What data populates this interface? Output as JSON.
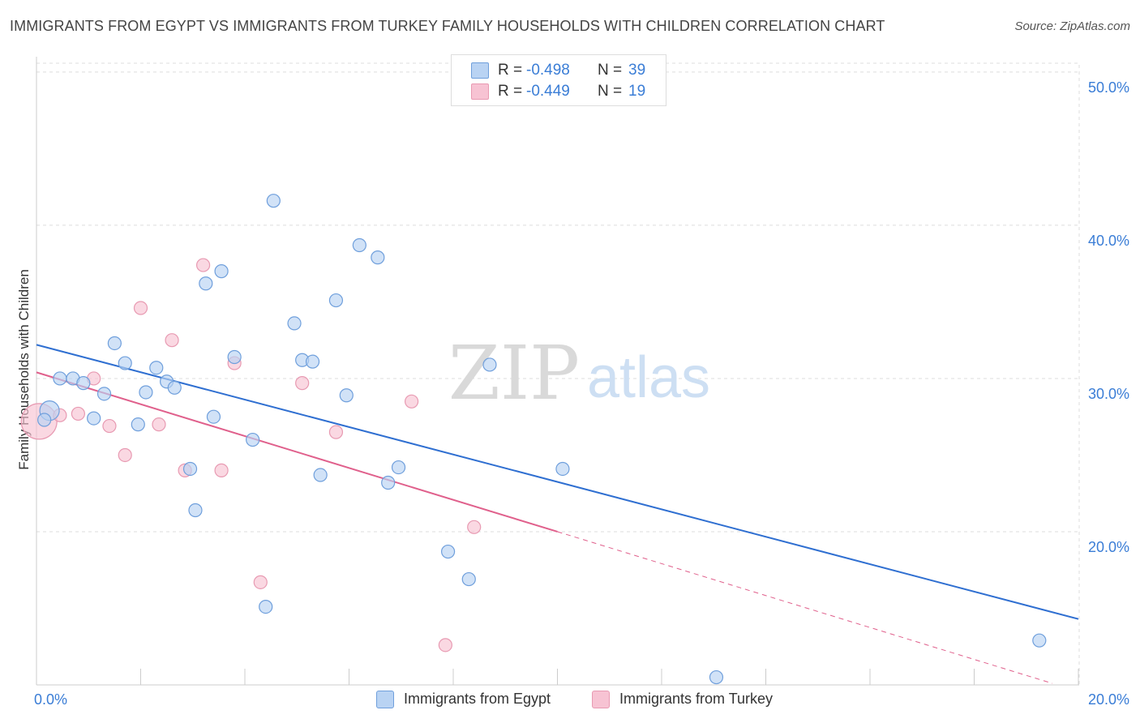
{
  "header": {
    "title": "IMMIGRANTS FROM EGYPT VS IMMIGRANTS FROM TURKEY FAMILY HOUSEHOLDS WITH CHILDREN CORRELATION CHART",
    "source": "Source: ZipAtlas.com"
  },
  "watermark": {
    "zip": "ZIP",
    "atlas": "atlas"
  },
  "stats": {
    "egypt": {
      "r_label": "R =",
      "r_value": "-0.498",
      "n_label": "N =",
      "n_value": "39"
    },
    "turkey": {
      "r_label": "R =",
      "r_value": "-0.449",
      "n_label": "N =",
      "n_value": "19"
    }
  },
  "legend": {
    "egypt": "Immigrants from Egypt",
    "turkey": "Immigrants from Turkey"
  },
  "colors": {
    "egypt_fill": "#b9d3f3",
    "egypt_stroke": "#6f9fdc",
    "egypt_line": "#2f6fd1",
    "turkey_fill": "#f7c3d3",
    "turkey_stroke": "#e89ab2",
    "turkey_line": "#e0608c",
    "axis_text": "#3a7dd6",
    "grid": "#dddddd"
  },
  "chart_data": {
    "type": "scatter",
    "title": "IMMIGRANTS FROM EGYPT VS IMMIGRANTS FROM TURKEY FAMILY HOUSEHOLDS WITH CHILDREN CORRELATION CHART",
    "xlabel": "",
    "ylabel": "Family Households with Children",
    "xlim": [
      0,
      20
    ],
    "ylim": [
      10,
      51
    ],
    "x_tick_labels": [
      "0.0%",
      "20.0%"
    ],
    "y_ticks": [
      20,
      30,
      40,
      50
    ],
    "y_tick_labels": [
      "20.0%",
      "30.0%",
      "40.0%",
      "50.0%"
    ],
    "grid": true,
    "series": [
      {
        "name": "Immigrants from Egypt",
        "r": -0.498,
        "n": 39,
        "points": [
          [
            0.25,
            27.9,
            2
          ],
          [
            0.45,
            30.0,
            1
          ],
          [
            0.7,
            30.0,
            1
          ],
          [
            0.9,
            29.7,
            1
          ],
          [
            1.1,
            27.4,
            1
          ],
          [
            1.3,
            29.0,
            1
          ],
          [
            1.5,
            32.3,
            1
          ],
          [
            1.7,
            31.0,
            1
          ],
          [
            1.95,
            27.0,
            1
          ],
          [
            2.1,
            29.1,
            1
          ],
          [
            2.3,
            30.7,
            1
          ],
          [
            2.5,
            29.8,
            1
          ],
          [
            2.65,
            29.4,
            1
          ],
          [
            2.95,
            24.1,
            1
          ],
          [
            3.05,
            21.4,
            1
          ],
          [
            3.25,
            36.2,
            1
          ],
          [
            3.4,
            27.5,
            1
          ],
          [
            3.55,
            37.0,
            1
          ],
          [
            3.8,
            31.4,
            1
          ],
          [
            4.15,
            26.0,
            1
          ],
          [
            4.4,
            15.1,
            1
          ],
          [
            4.55,
            41.6,
            1
          ],
          [
            4.95,
            33.6,
            1
          ],
          [
            5.1,
            31.2,
            1
          ],
          [
            5.3,
            31.1,
            1
          ],
          [
            5.45,
            23.7,
            1
          ],
          [
            5.75,
            35.1,
            1
          ],
          [
            5.95,
            28.9,
            1
          ],
          [
            6.2,
            38.7,
            1
          ],
          [
            6.55,
            37.9,
            1
          ],
          [
            6.75,
            23.2,
            1
          ],
          [
            6.95,
            24.2,
            1
          ],
          [
            7.9,
            18.7,
            1
          ],
          [
            8.3,
            16.9,
            1
          ],
          [
            8.7,
            30.9,
            1
          ],
          [
            10.1,
            24.1,
            1
          ],
          [
            13.05,
            10.5,
            1
          ],
          [
            19.25,
            12.9,
            1
          ],
          [
            0.15,
            27.3,
            1
          ]
        ],
        "trend": {
          "x": [
            0,
            20
          ],
          "y": [
            32.2,
            14.3
          ]
        }
      },
      {
        "name": "Immigrants from Turkey",
        "r": -0.449,
        "n": 19,
        "points": [
          [
            0.05,
            27.2,
            3
          ],
          [
            0.45,
            27.6,
            1
          ],
          [
            0.8,
            27.7,
            1
          ],
          [
            1.1,
            30.0,
            1
          ],
          [
            1.4,
            26.9,
            1
          ],
          [
            1.7,
            25.0,
            1
          ],
          [
            2.0,
            34.6,
            1
          ],
          [
            2.35,
            27.0,
            1
          ],
          [
            2.6,
            32.5,
            1
          ],
          [
            2.85,
            24.0,
            1
          ],
          [
            3.2,
            37.4,
            1
          ],
          [
            3.55,
            24.0,
            1
          ],
          [
            3.8,
            31.0,
            1
          ],
          [
            4.3,
            16.7,
            1
          ],
          [
            5.1,
            29.7,
            1
          ],
          [
            5.75,
            26.5,
            1
          ],
          [
            7.2,
            28.5,
            1
          ],
          [
            7.85,
            12.6,
            1
          ],
          [
            8.4,
            20.3,
            1
          ]
        ],
        "trend": {
          "x": [
            0,
            10
          ],
          "y": [
            30.4,
            20.0
          ]
        },
        "trend_dashed": {
          "x": [
            10,
            19.5
          ],
          "y": [
            20.0,
            10.1
          ]
        }
      }
    ]
  }
}
